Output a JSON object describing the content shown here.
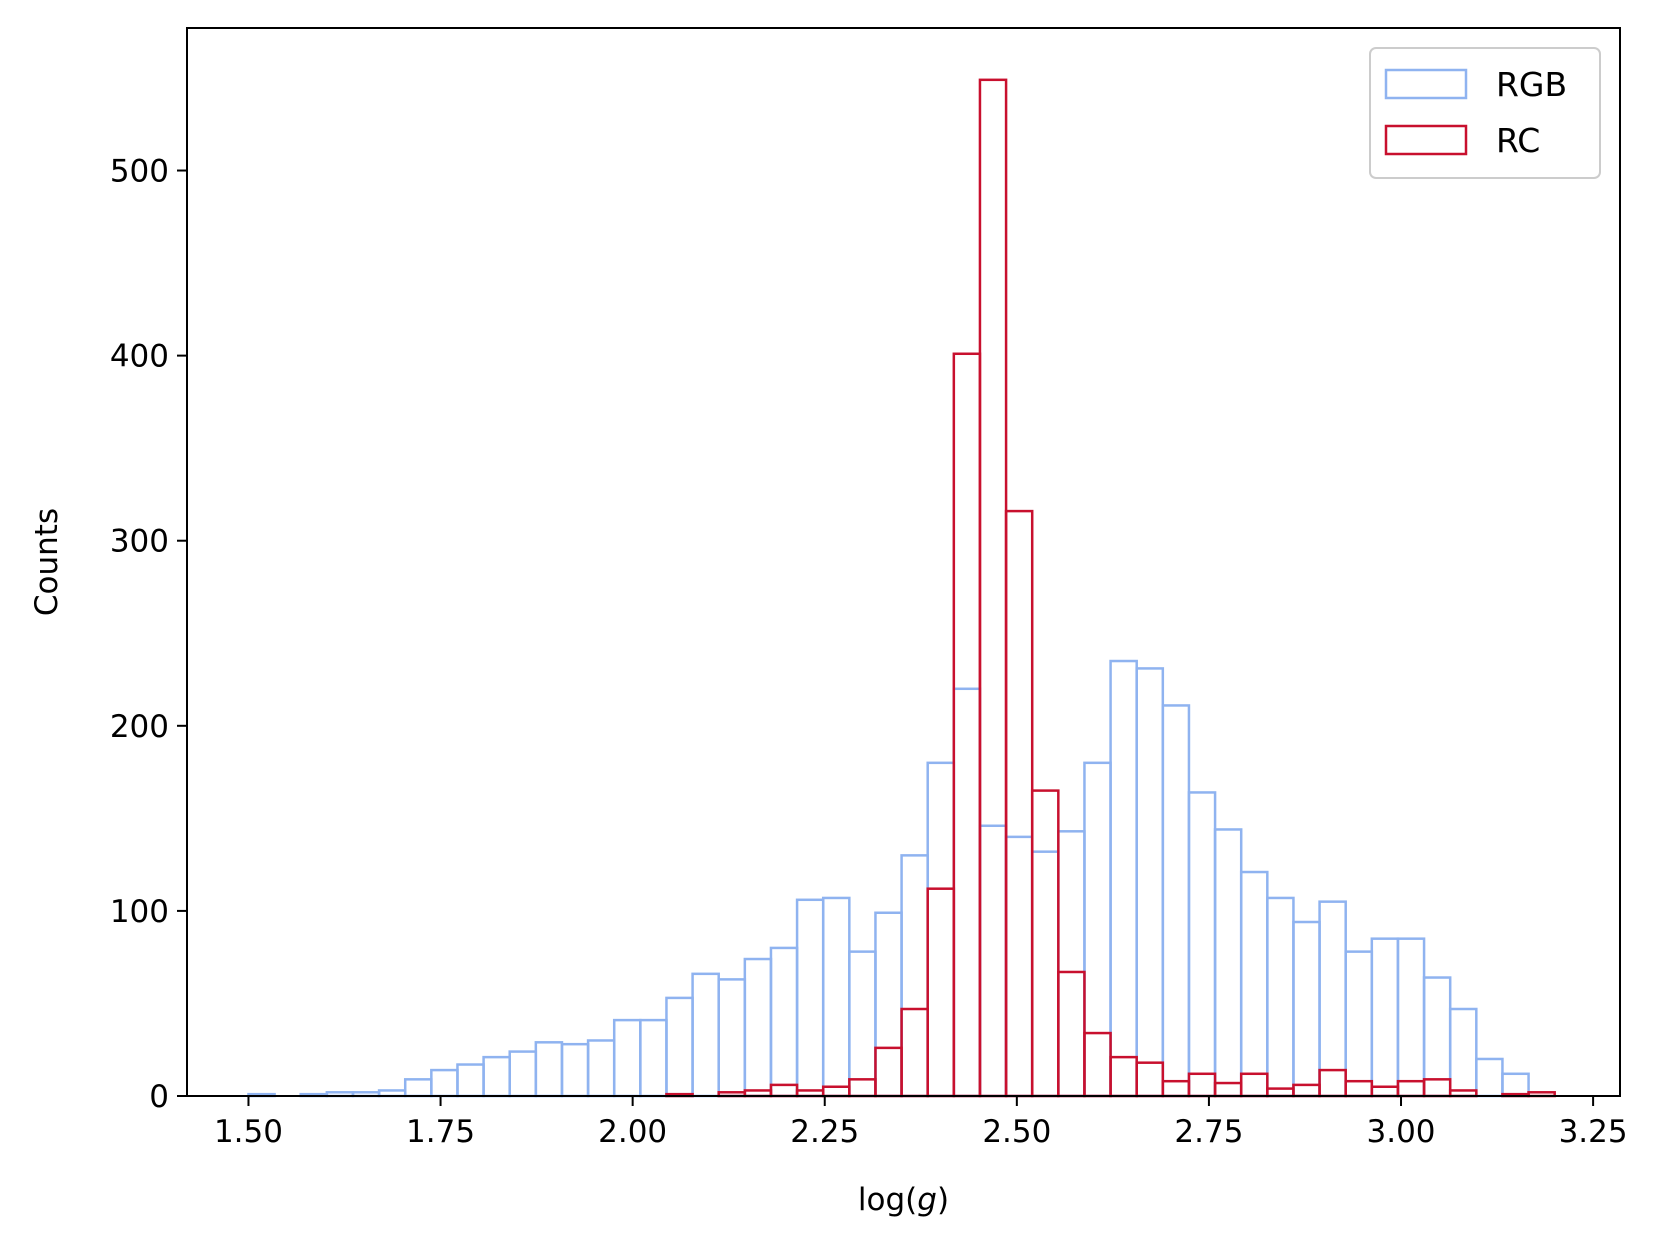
{
  "chart_data": {
    "type": "bar",
    "subtype": "step-histogram",
    "title": "",
    "xlabel_prefix": "log(",
    "xlabel_var": "g",
    "xlabel_suffix": ")",
    "ylabel": "Counts",
    "xlim": [
      1.42,
      3.285
    ],
    "ylim": [
      0,
      577
    ],
    "xticks": [
      1.5,
      1.75,
      2.0,
      2.25,
      2.5,
      2.75,
      3.0,
      3.25
    ],
    "xtick_labels": [
      "1.50",
      "1.75",
      "2.00",
      "2.25",
      "2.50",
      "2.75",
      "3.00",
      "3.25"
    ],
    "yticks": [
      0,
      100,
      200,
      300,
      400,
      500
    ],
    "ytick_labels": [
      "0",
      "100",
      "200",
      "300",
      "400",
      "500"
    ],
    "grid": false,
    "legend_position": "top-right",
    "series": [
      {
        "name": "RGB",
        "color": "#8fb3f0",
        "bin_start": 1.5,
        "bin_width": 0.034,
        "counts": [
          1,
          0,
          1,
          2,
          2,
          3,
          9,
          14,
          17,
          21,
          24,
          29,
          28,
          30,
          41,
          41,
          53,
          66,
          63,
          74,
          80,
          106,
          107,
          78,
          99,
          130,
          180,
          220,
          146,
          140,
          132,
          143,
          180,
          235,
          231,
          211,
          164,
          144,
          121,
          107,
          94,
          105,
          78,
          85,
          85,
          64,
          47,
          20,
          12,
          0
        ]
      },
      {
        "name": "RC",
        "color": "#c8102e",
        "bin_start": 1.5,
        "bin_width": 0.034,
        "counts": [
          0,
          0,
          0,
          0,
          0,
          0,
          0,
          0,
          0,
          0,
          0,
          0,
          0,
          0,
          0,
          0,
          1,
          0,
          2,
          3,
          6,
          3,
          5,
          9,
          26,
          47,
          112,
          401,
          549,
          316,
          165,
          67,
          34,
          21,
          18,
          8,
          12,
          7,
          12,
          4,
          6,
          14,
          8,
          5,
          8,
          9,
          3,
          0,
          1,
          2
        ]
      }
    ]
  }
}
